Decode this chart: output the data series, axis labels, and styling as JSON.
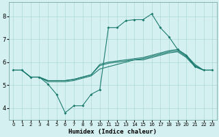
{
  "xlabel": "Humidex (Indice chaleur)",
  "bg_color": "#d4f0f0",
  "line_color": "#1a7a6e",
  "grid_color": "#b0d8d8",
  "xlim": [
    -0.5,
    23.5
  ],
  "ylim": [
    3.5,
    8.6
  ],
  "xticks": [
    0,
    1,
    2,
    3,
    4,
    5,
    6,
    7,
    8,
    9,
    10,
    11,
    12,
    13,
    14,
    15,
    16,
    17,
    18,
    19,
    20,
    21,
    22,
    23
  ],
  "yticks": [
    4,
    5,
    6,
    7,
    8
  ],
  "series": {
    "zigzag": [
      5.65,
      5.65,
      5.35,
      5.35,
      5.05,
      4.6,
      3.8,
      4.1,
      4.1,
      4.6,
      4.8,
      7.5,
      7.5,
      7.8,
      7.85,
      7.85,
      8.1,
      7.5,
      7.1,
      6.55,
      6.3,
      5.8,
      5.65,
      5.65
    ],
    "line1": [
      5.65,
      5.65,
      5.35,
      5.35,
      5.2,
      5.2,
      5.2,
      5.25,
      5.35,
      5.45,
      5.9,
      6.0,
      6.05,
      6.1,
      6.15,
      6.2,
      6.3,
      6.4,
      6.5,
      6.55,
      6.3,
      5.9,
      5.65,
      5.65
    ],
    "line2": [
      5.65,
      5.65,
      5.35,
      5.35,
      5.2,
      5.2,
      5.2,
      5.25,
      5.35,
      5.45,
      5.85,
      5.95,
      6.0,
      6.05,
      6.1,
      6.15,
      6.25,
      6.35,
      6.45,
      6.5,
      6.25,
      5.85,
      5.65,
      5.65
    ],
    "line3": [
      5.65,
      5.65,
      5.35,
      5.35,
      5.15,
      5.15,
      5.15,
      5.2,
      5.3,
      5.4,
      5.7,
      5.8,
      5.9,
      6.0,
      6.1,
      6.1,
      6.2,
      6.3,
      6.4,
      6.45,
      6.2,
      5.8,
      5.65,
      5.65
    ]
  }
}
